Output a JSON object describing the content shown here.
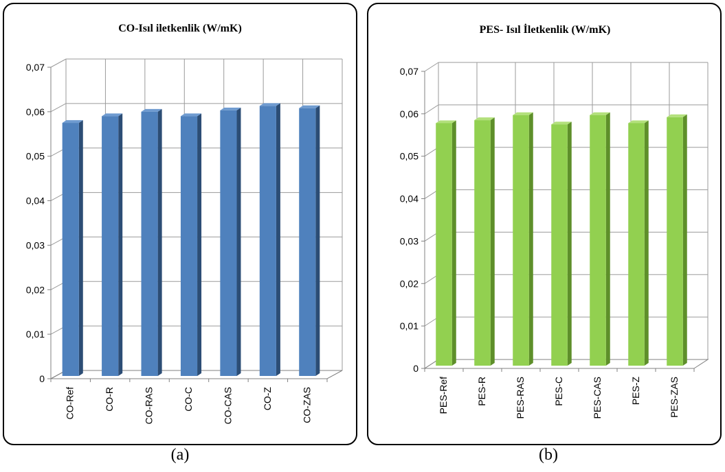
{
  "chart_data": [
    {
      "type": "bar",
      "title": "CO-Isıl iletkenlik (W/mK)",
      "categories": [
        "CO-Ref",
        "CO-R",
        "CO-RAS",
        "CO-C",
        "CO-CAS",
        "CO-Z",
        "CO-ZAS"
      ],
      "values": [
        0.0575,
        0.059,
        0.06,
        0.059,
        0.0603,
        0.0613,
        0.0608
      ],
      "ylim": [
        0,
        0.07
      ],
      "yticks": [
        "0",
        "0,01",
        "0,02",
        "0,03",
        "0,04",
        "0,05",
        "0,06",
        "0,07"
      ],
      "grid": true,
      "colors": {
        "front": "#4f81bd",
        "side": "#2c4d75",
        "top": "#6f9bd0"
      }
    },
    {
      "type": "bar",
      "title": "PES- Isıl İletkenlik (W/mK)",
      "categories": [
        "PES-Ref",
        "PES-R",
        "PES-RAS",
        "PES-C",
        "PES-CAS",
        "PES-Z",
        "PES-ZAS"
      ],
      "values": [
        0.0578,
        0.0585,
        0.0597,
        0.0575,
        0.0597,
        0.0578,
        0.0592
      ],
      "ylim": [
        0,
        0.07
      ],
      "yticks": [
        "0",
        "0,01",
        "0,02",
        "0,03",
        "0,04",
        "0,05",
        "0,06",
        "0,07"
      ],
      "grid": true,
      "colors": {
        "front": "#92d050",
        "side": "#5e8f2a",
        "top": "#b3e07c"
      }
    }
  ],
  "captions": [
    "(a)",
    "(b)"
  ]
}
